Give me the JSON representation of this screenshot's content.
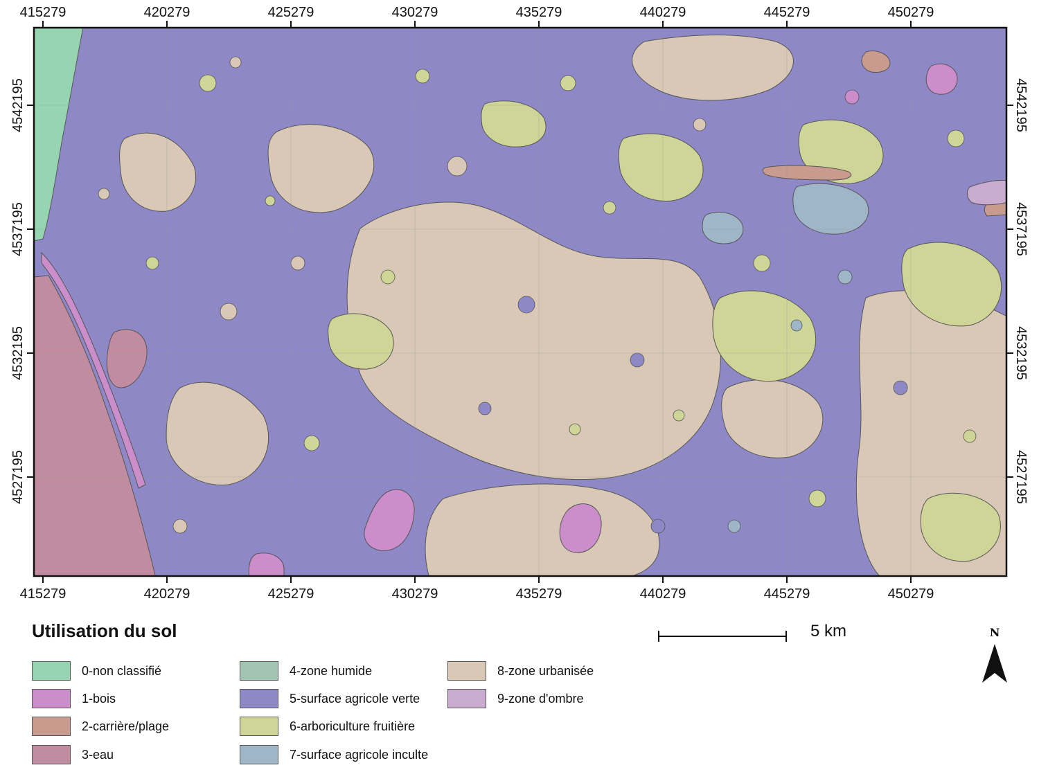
{
  "map": {
    "frame_coordinates": {
      "x_ticks": [
        "415279",
        "420279",
        "425279",
        "430279",
        "435279",
        "440279",
        "445279",
        "450279"
      ],
      "y_ticks": [
        "4542195",
        "4537195",
        "4532195",
        "4527195"
      ]
    },
    "classes": [
      {
        "label": "0-non classifié",
        "color": "#97d5b2"
      },
      {
        "label": "1-bois",
        "color": "#cc8ecb"
      },
      {
        "label": "2-carrière/plage",
        "color": "#c99b8e"
      },
      {
        "label": "3-eau",
        "color": "#c18c9f"
      },
      {
        "label": "4-zone humide",
        "color": "#a3c4b3"
      },
      {
        "label": "5-surface agricole verte",
        "color": "#8f88c6"
      },
      {
        "label": "6-arboriculture fruitière",
        "color": "#cfd597"
      },
      {
        "label": "7-surface agricole inculte",
        "color": "#9fb6c8"
      },
      {
        "label": "8-zone urbanisée",
        "color": "#d8c8b5"
      },
      {
        "label": "9-zone d'ombre",
        "color": "#c9acd0"
      }
    ]
  },
  "legend": {
    "title": "Utilisation du sol",
    "items": [
      {
        "label": "0-non classifié",
        "color": "#97d5b2"
      },
      {
        "label": "1-bois",
        "color": "#cc8ecb"
      },
      {
        "label": "2-carrière/plage",
        "color": "#c99b8e"
      },
      {
        "label": "3-eau",
        "color": "#c18c9f"
      },
      {
        "label": "4-zone humide",
        "color": "#a3c4b3"
      },
      {
        "label": "5-surface agricole verte",
        "color": "#8f88c6"
      },
      {
        "label": "6-arboriculture fruitière",
        "color": "#cfd597"
      },
      {
        "label": "7-surface agricole inculte",
        "color": "#9fb6c8"
      },
      {
        "label": "8-zone urbanisée",
        "color": "#d8c8b5"
      },
      {
        "label": "9-zone d'ombre",
        "color": "#c9acd0"
      }
    ]
  },
  "scale_bar": {
    "label": "5 km"
  },
  "north_arrow": {
    "label": "N",
    "icon": "north-arrow-icon"
  }
}
